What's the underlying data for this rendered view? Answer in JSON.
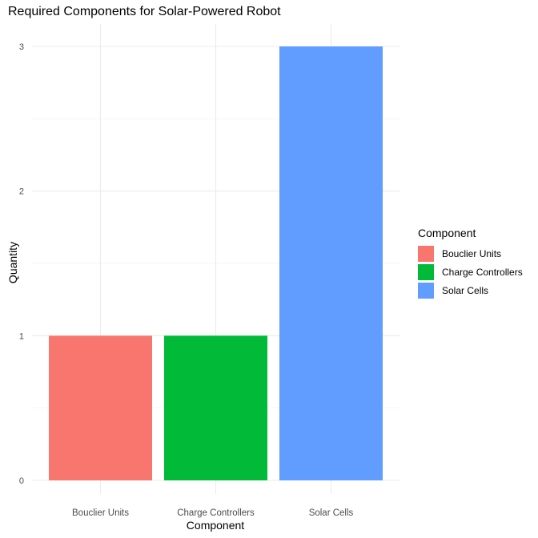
{
  "chart_data": {
    "type": "bar",
    "title": "Required Components for Solar-Powered Robot",
    "xlabel": "Component",
    "ylabel": "Quantity",
    "categories": [
      "Bouclier Units",
      "Charge Controllers",
      "Solar Cells"
    ],
    "values": [
      1,
      1,
      3
    ],
    "colors": [
      "#F8766D",
      "#00BA38",
      "#619CFF"
    ],
    "ylim": [
      0,
      3.15
    ],
    "yticks": [
      0,
      1,
      2,
      3
    ],
    "grid": true,
    "legend": {
      "title": "Component",
      "placement": "right",
      "entries": [
        "Bouclier Units",
        "Charge Controllers",
        "Solar Cells"
      ]
    }
  }
}
